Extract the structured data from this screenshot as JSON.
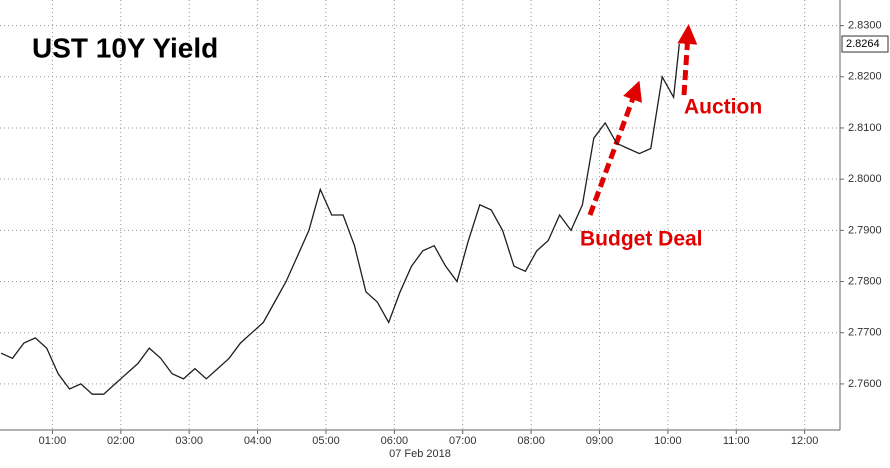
{
  "chart_data": {
    "type": "line",
    "title": "UST 10Y Yield",
    "xlabel": "07 Feb 2018",
    "x": [
      15,
      25,
      35,
      45,
      55,
      65,
      75,
      85,
      95,
      105,
      115,
      125,
      135,
      145,
      155,
      165,
      175,
      185,
      195,
      205,
      215,
      225,
      235,
      245,
      255,
      265,
      275,
      285,
      295,
      305,
      315,
      325,
      335,
      345,
      355,
      365,
      375,
      385,
      395,
      405,
      415,
      425,
      435,
      445,
      455,
      465,
      475,
      485,
      495,
      505,
      515,
      525,
      535,
      545,
      555,
      565,
      575,
      585,
      595,
      605,
      610
    ],
    "series": [
      {
        "color": "#1f1f1f",
        "values": [
          2.766,
          2.765,
          2.768,
          2.769,
          2.767,
          2.762,
          2.759,
          2.76,
          2.758,
          2.758,
          2.76,
          2.762,
          2.764,
          2.767,
          2.765,
          2.762,
          2.761,
          2.763,
          2.761,
          2.763,
          2.765,
          2.768,
          2.77,
          2.772,
          2.776,
          2.78,
          2.785,
          2.79,
          2.798,
          2.793,
          2.793,
          2.787,
          2.778,
          2.776,
          2.772,
          2.778,
          2.783,
          2.786,
          2.787,
          2.783,
          2.78,
          2.788,
          2.795,
          2.794,
          2.79,
          2.783,
          2.782,
          2.786,
          2.788,
          2.793,
          2.79,
          2.795,
          2.808,
          2.811,
          2.807,
          2.806,
          2.805,
          2.806,
          2.82,
          2.816,
          2.8264
        ]
      }
    ],
    "xlim": [
      14,
      751
    ],
    "xticks": [
      {
        "value": 60,
        "label": "01:00"
      },
      {
        "value": 120,
        "label": "02:00"
      },
      {
        "value": 180,
        "label": "03:00"
      },
      {
        "value": 240,
        "label": "04:00"
      },
      {
        "value": 300,
        "label": "05:00"
      },
      {
        "value": 360,
        "label": "06:00"
      },
      {
        "value": 420,
        "label": "07:00"
      },
      {
        "value": 480,
        "label": "08:00"
      },
      {
        "value": 540,
        "label": "09:00"
      },
      {
        "value": 600,
        "label": "10:00"
      },
      {
        "value": 660,
        "label": "11:00"
      },
      {
        "value": 720,
        "label": "12:00"
      }
    ],
    "ylim": [
      2.751,
      2.835
    ],
    "yticks": [
      {
        "value": 2.76,
        "label": "2.7600"
      },
      {
        "value": 2.77,
        "label": "2.7700"
      },
      {
        "value": 2.78,
        "label": "2.7800"
      },
      {
        "value": 2.79,
        "label": "2.7900"
      },
      {
        "value": 2.8,
        "label": "2.8000"
      },
      {
        "value": 2.81,
        "label": "2.8100"
      },
      {
        "value": 2.82,
        "label": "2.8200"
      },
      {
        "value": 2.83,
        "label": "2.8300"
      }
    ],
    "grid": true,
    "current_value": {
      "value": 2.8264,
      "label": "2.8264"
    },
    "annotations": [
      "Budget Deal",
      "Auction"
    ]
  }
}
